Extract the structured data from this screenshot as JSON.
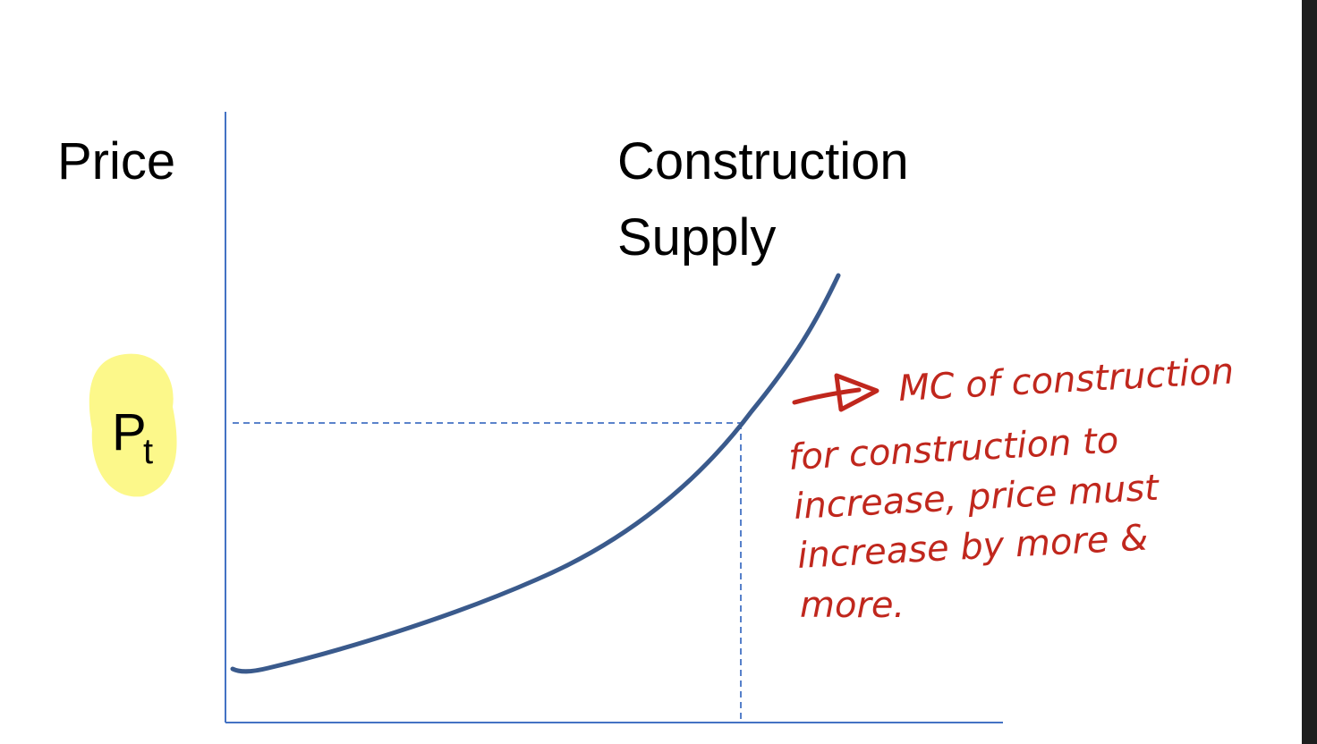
{
  "diagram": {
    "y_axis_label": "Price",
    "curve_label_line1": "Construction",
    "curve_label_line2": "Supply",
    "price_marker": {
      "main": "P",
      "subscript": "t"
    },
    "colors": {
      "axis": "#4472c4",
      "curve": "#3a5a8c",
      "annotation": "#c0271d",
      "highlight": "#fcf88a"
    }
  },
  "annotation": {
    "line1": "MC of construction",
    "line2": "for construction to",
    "line3": "increase, price must",
    "line4": "increase by more &",
    "line5": "more."
  }
}
